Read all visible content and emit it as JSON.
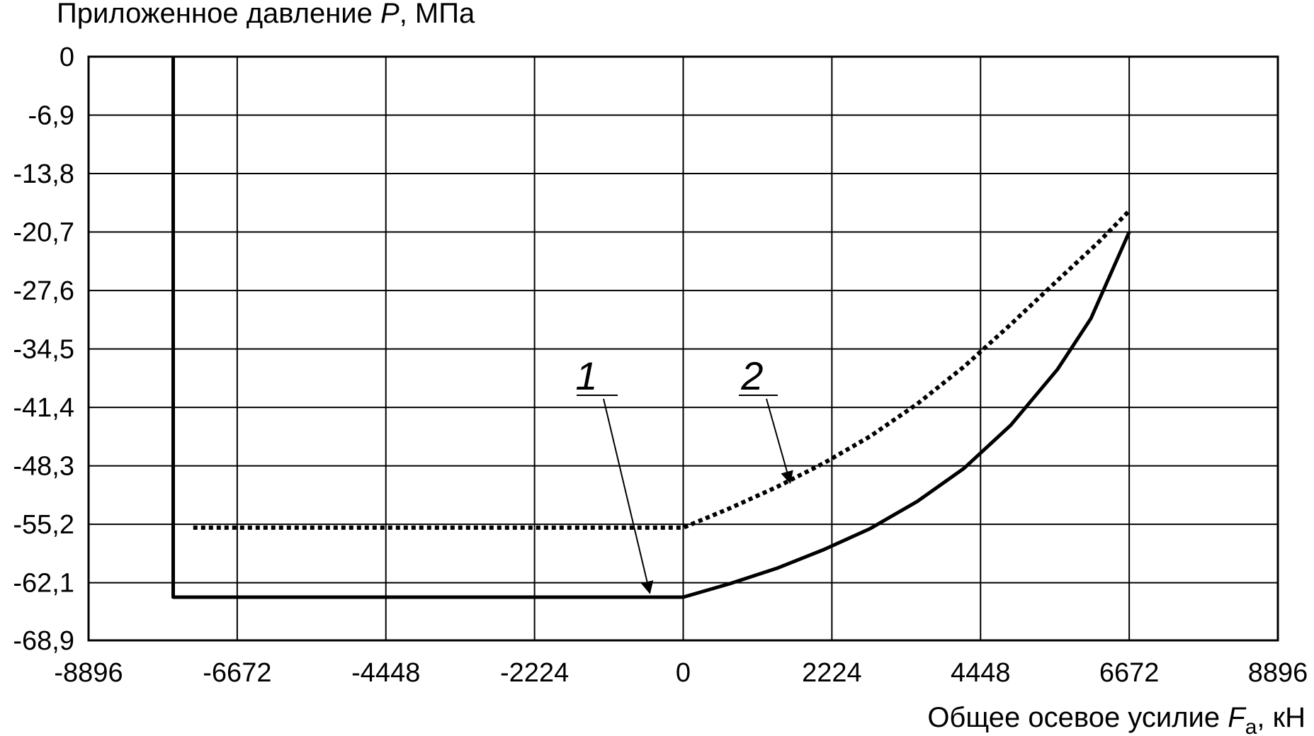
{
  "chart_data": {
    "type": "line",
    "ylabel_prefix": "Приложенное давление ",
    "ylabel_var": "P",
    "ylabel_suffix": ", МПа",
    "xlabel_prefix": "Общее осевое усилие ",
    "xlabel_var": "F",
    "xlabel_sub": "a",
    "xlabel_suffix": ", кН",
    "xlim": [
      -8896,
      8896
    ],
    "ylim": [
      -68.9,
      0
    ],
    "x_ticks": [
      -8896,
      -6672,
      -4448,
      -2224,
      0,
      2224,
      4448,
      6672,
      8896
    ],
    "x_tick_labels": [
      "-8896",
      "-6672",
      "-4448",
      "-2224",
      "0",
      "2224",
      "4448",
      "6672",
      "8896"
    ],
    "y_ticks": [
      0,
      -6.9,
      -13.8,
      -20.7,
      -27.6,
      -34.5,
      -41.4,
      -48.3,
      -55.2,
      -62.1,
      -68.9
    ],
    "y_tick_labels": [
      "0",
      "-6,9",
      "-13,8",
      "-20,7",
      "-27,6",
      "-34,5",
      "-41,4",
      "-48,3",
      "-55,2",
      "-62,1",
      "-68,9"
    ],
    "grid": true,
    "series": [
      {
        "label": "1",
        "style": "solid",
        "color": "#000000",
        "x": [
          -7630,
          -7630,
          0,
          700,
          1400,
          2100,
          2800,
          3500,
          4200,
          4900,
          5600,
          6100,
          6672
        ],
        "y": [
          0,
          -63.8,
          -63.8,
          -62.2,
          -60.4,
          -58.2,
          -55.7,
          -52.5,
          -48.6,
          -43.5,
          -36.9,
          -30.9,
          -20.7
        ]
      },
      {
        "label": "2",
        "style": "dotted",
        "color": "#000000",
        "x": [
          -7330,
          0,
          700,
          1400,
          2100,
          2800,
          3500,
          4200,
          4900,
          5600,
          6200,
          6672
        ],
        "y": [
          -55.6,
          -55.6,
          -53.3,
          -50.8,
          -48.0,
          -44.8,
          -41.0,
          -36.6,
          -31.6,
          -26.4,
          -22.0,
          -18.2
        ]
      }
    ],
    "annotations": [
      {
        "text": "1",
        "series": "1",
        "arrow_to": [
          -500,
          -63.8
        ]
      },
      {
        "text": "2",
        "series": "2",
        "arrow_to": [
          1600,
          -50.8
        ]
      }
    ]
  }
}
